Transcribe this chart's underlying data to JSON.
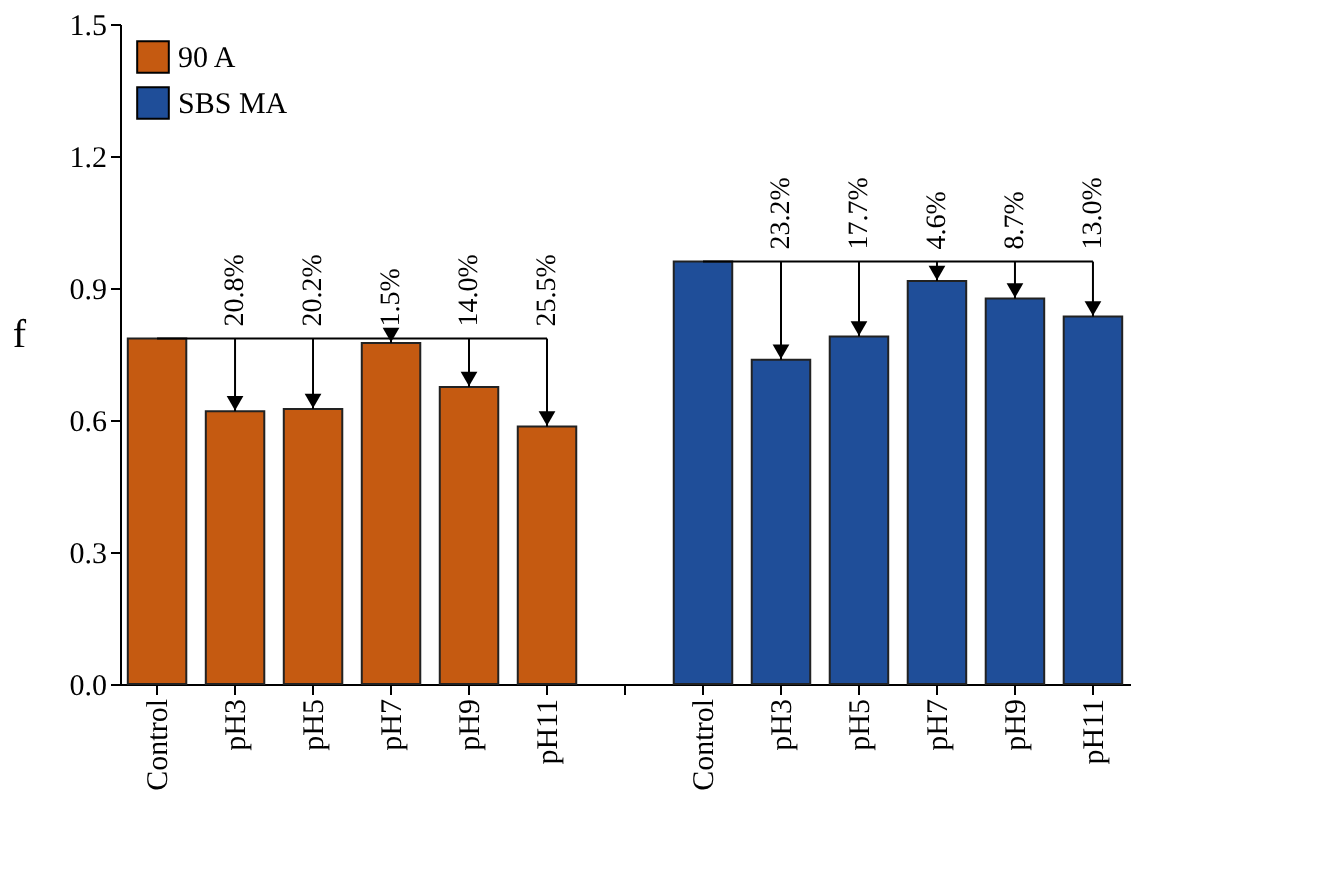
{
  "chart_data": {
    "type": "bar",
    "ylabel": "f",
    "categories": [
      "Control",
      "pH3",
      "pH5",
      "pH7",
      "pH9",
      "pH11",
      null,
      "Control",
      "pH3",
      "pH5",
      "pH7",
      "pH9",
      "pH11"
    ],
    "series": [
      {
        "name": "90 A",
        "color": "#c55a11",
        "values": [
          0.785,
          0.62,
          0.625,
          0.775,
          0.675,
          0.585,
          null,
          null,
          null,
          null,
          null,
          null,
          null
        ]
      },
      {
        "name": "SBS MA",
        "color": "#1f4e99",
        "values": [
          null,
          null,
          null,
          null,
          null,
          null,
          null,
          0.96,
          0.737,
          0.79,
          0.916,
          0.876,
          0.835
        ]
      }
    ],
    "annotations": [
      {
        "text": "20.8%",
        "x": "pH3",
        "y": 0.62
      },
      {
        "text": "20.2%",
        "x": "pH5",
        "y": 0.625
      },
      {
        "text": "1.5%",
        "x": "pH7",
        "y": 0.775
      },
      {
        "text": "14.0%",
        "x": "pH9",
        "y": 0.675
      },
      {
        "text": "25.5%",
        "x": "pH11",
        "y": 0.585
      },
      {
        "text": "23.2%",
        "y": 0.737
      },
      {
        "text": "17.7%",
        "y": 0.79
      },
      {
        "text": "4.6%",
        "y": 0.916
      },
      {
        "text": "8.7%",
        "y": 0.876
      },
      {
        "text": "13.0%",
        "y": 0.835
      }
    ],
    "ylim": [
      0,
      1.5
    ],
    "yticks": [
      {
        "value": 0,
        "label": "0.0"
      },
      {
        "value": 0.3,
        "label": "0.3"
      },
      {
        "value": 0.6,
        "label": "0.6"
      },
      {
        "value": 0.9,
        "label": "0.9"
      },
      {
        "value": 1.2,
        "label": "1.2"
      },
      {
        "value": 1.5,
        "label": "1.5"
      }
    ],
    "grid": false,
    "legend": "top left"
  }
}
